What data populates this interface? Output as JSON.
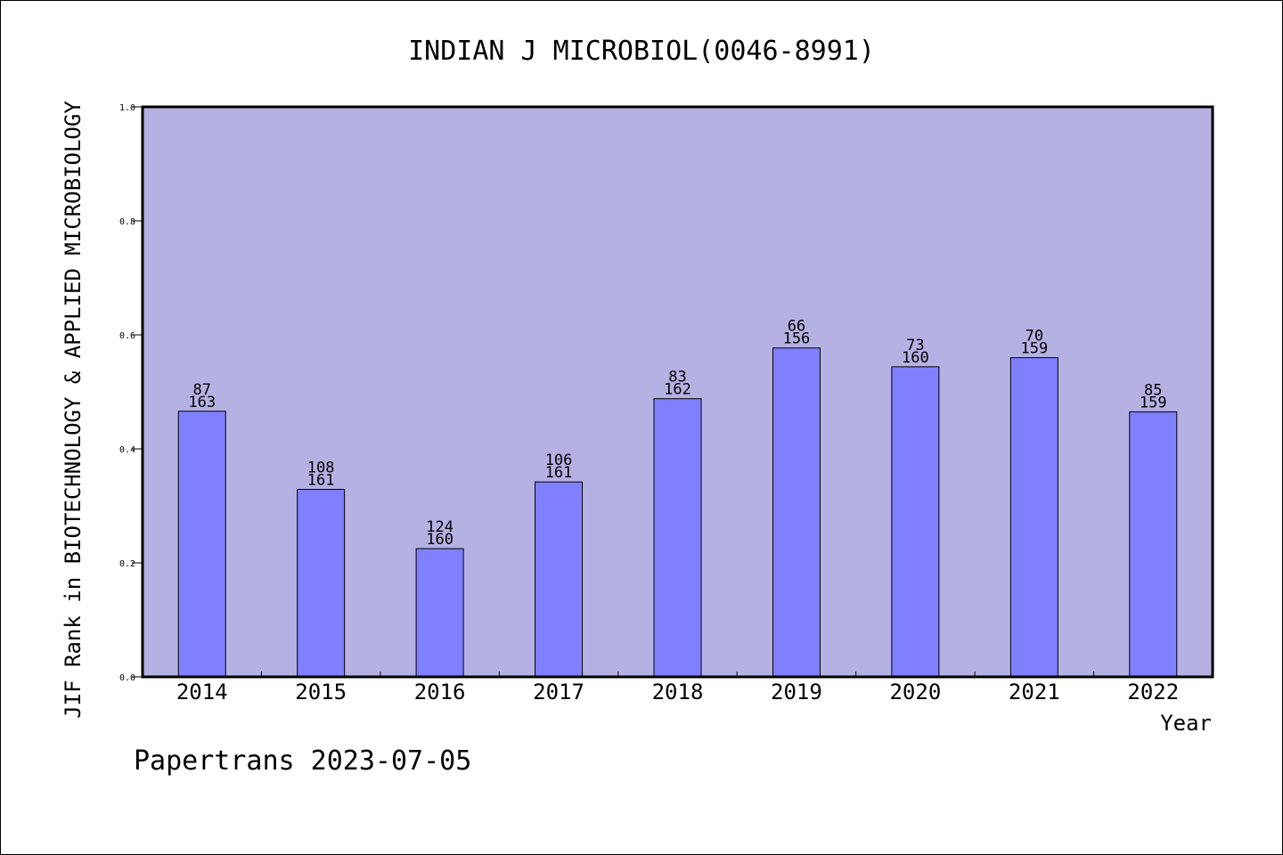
{
  "chart_data": {
    "type": "bar",
    "title": "INDIAN J MICROBIOL(0046-8991)",
    "xlabel": "Year",
    "ylabel": "JIF Rank in BIOTECHNOLOGY & APPLIED MICROBIOLOGY",
    "ylim": [
      0,
      1
    ],
    "yticks": [
      "0.0",
      "0.2",
      "0.4",
      "0.6",
      "0.8",
      "1.0"
    ],
    "grid": false,
    "categories": [
      "2014",
      "2015",
      "2016",
      "2017",
      "2018",
      "2019",
      "2020",
      "2021",
      "2022"
    ],
    "values": [
      0.466,
      0.329,
      0.225,
      0.342,
      0.488,
      0.577,
      0.544,
      0.56,
      0.465
    ],
    "ranks": [
      "87",
      "108",
      "124",
      "106",
      "83",
      "66",
      "73",
      "70",
      "85"
    ],
    "totals": [
      "163",
      "161",
      "160",
      "161",
      "162",
      "156",
      "160",
      "159",
      "159"
    ],
    "colors": {
      "plot_bg": "#b6b1e3",
      "bar": "#8080ff",
      "axis": "#000000"
    }
  },
  "footer": {
    "text": "Papertrans 2023-07-05"
  }
}
